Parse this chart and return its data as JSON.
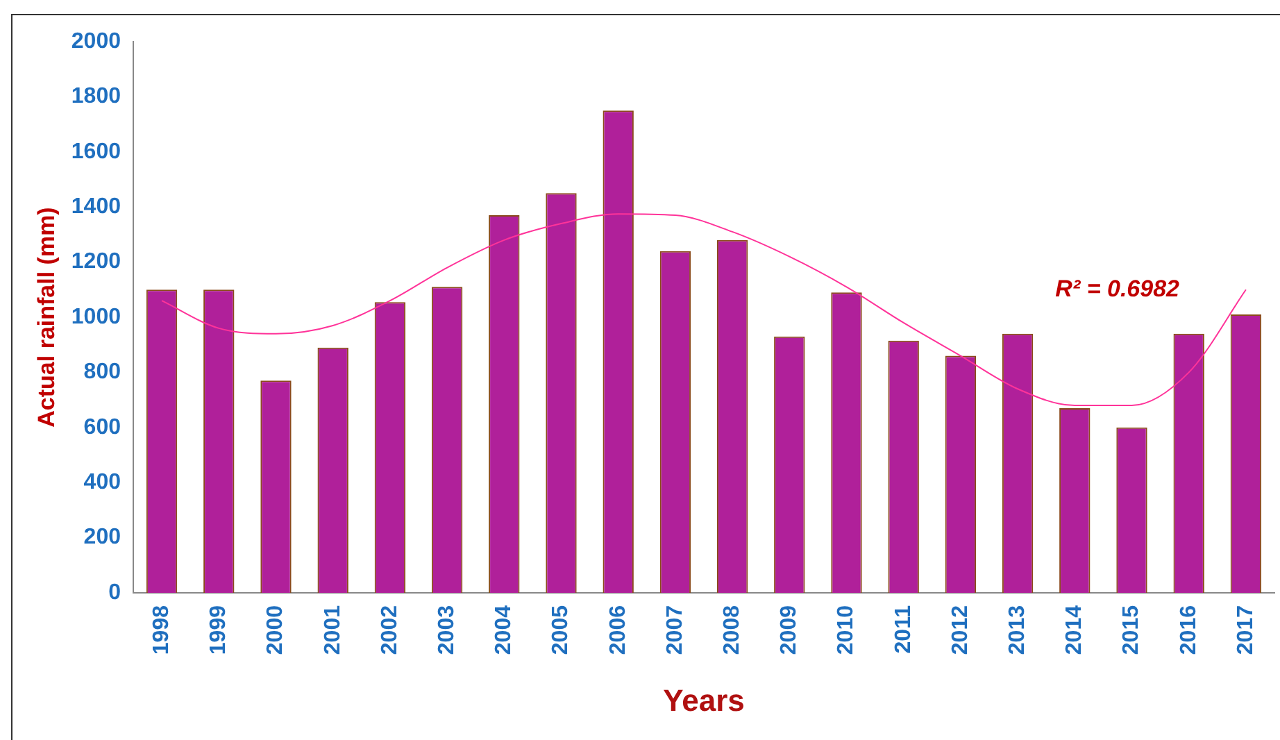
{
  "chart_data": {
    "type": "bar",
    "xlabel": "Years",
    "ylabel": "Actual rainfall (mm)",
    "categories": [
      "1998",
      "1999",
      "2000",
      "2001",
      "2002",
      "2003",
      "2004",
      "2005",
      "2006",
      "2007",
      "2008",
      "2009",
      "2010",
      "2011",
      "2012",
      "2013",
      "2014",
      "2015",
      "2016",
      "2017"
    ],
    "series": [
      {
        "color": "#b0209a",
        "values": [
          1100,
          1100,
          770,
          890,
          1055,
          1110,
          1370,
          1450,
          1750,
          1240,
          1280,
          930,
          1090,
          915,
          860,
          940,
          670,
          600,
          940,
          1010
        ]
      },
      {
        "type": "line",
        "color": "#ff3399",
        "values": [
          1060,
          960,
          940,
          970,
          1060,
          1180,
          1280,
          1340,
          1375,
          1370,
          1310,
          1220,
          1110,
          980,
          860,
          740,
          680,
          680,
          800,
          1100
        ]
      }
    ],
    "ylim": [
      0,
      2000
    ],
    "yticks": [
      0,
      200,
      400,
      600,
      800,
      1000,
      1200,
      1400,
      1600,
      1800,
      2000
    ],
    "grid": false,
    "legend": false,
    "marker": "none",
    "annotations": [
      "R² = 0.6982"
    ]
  }
}
